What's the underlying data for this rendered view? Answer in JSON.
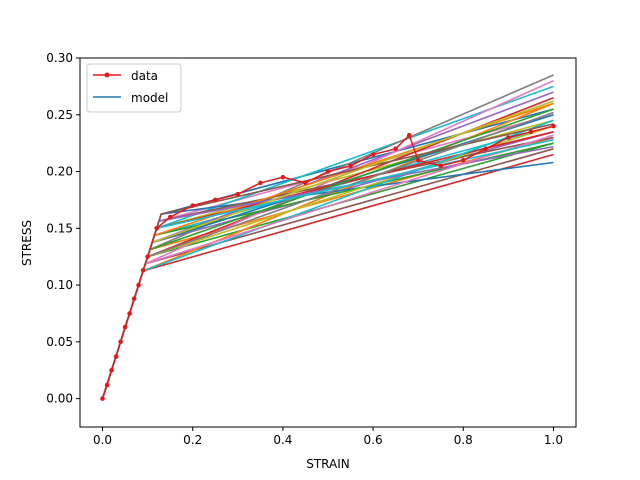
{
  "chart_data": {
    "type": "line",
    "title": "",
    "xlabel": "STRAIN",
    "ylabel": "STRESS",
    "xlim": [
      -0.05,
      1.05
    ],
    "ylim": [
      -0.025,
      0.3
    ],
    "xticks": [
      "0.0",
      "0.2",
      "0.4",
      "0.6",
      "0.8",
      "1.0"
    ],
    "yticks": [
      "0.00",
      "0.05",
      "0.10",
      "0.15",
      "0.20",
      "0.25",
      "0.30"
    ],
    "grid": false,
    "legend": {
      "position": "top-left",
      "entries": [
        {
          "label": "data",
          "color": "#e31a1c",
          "marker": "dot"
        },
        {
          "label": "model",
          "color": "#1f77b4",
          "marker": "none"
        }
      ]
    },
    "elastic_modulus": 1.25,
    "data_series": {
      "name": "data",
      "color": "#e31a1c",
      "x": [
        0.0,
        0.01,
        0.02,
        0.03,
        0.04,
        0.05,
        0.06,
        0.07,
        0.08,
        0.09,
        0.1,
        0.12,
        0.15,
        0.2,
        0.25,
        0.3,
        0.35,
        0.4,
        0.45,
        0.5,
        0.55,
        0.6,
        0.65,
        0.68,
        0.7,
        0.75,
        0.8,
        0.85,
        0.9,
        0.95,
        1.0
      ],
      "y": [
        0.0,
        0.012,
        0.025,
        0.037,
        0.05,
        0.063,
        0.075,
        0.088,
        0.1,
        0.113,
        0.125,
        0.15,
        0.16,
        0.17,
        0.175,
        0.18,
        0.19,
        0.195,
        0.19,
        0.2,
        0.205,
        0.215,
        0.22,
        0.232,
        0.21,
        0.205,
        0.21,
        0.22,
        0.23,
        0.235,
        0.24
      ]
    },
    "model_series": [
      {
        "yield_strain": 0.09,
        "end_stress": 0.215,
        "color": "#d62728"
      },
      {
        "yield_strain": 0.095,
        "end_stress": 0.22,
        "color": "#8c564b"
      },
      {
        "yield_strain": 0.1,
        "end_stress": 0.225,
        "color": "#2ca02c"
      },
      {
        "yield_strain": 0.105,
        "end_stress": 0.23,
        "color": "#ff7f0e"
      },
      {
        "yield_strain": 0.11,
        "end_stress": 0.235,
        "color": "#9467bd"
      },
      {
        "yield_strain": 0.115,
        "end_stress": 0.24,
        "color": "#17becf"
      },
      {
        "yield_strain": 0.12,
        "end_stress": 0.245,
        "color": "#bcbd22"
      },
      {
        "yield_strain": 0.125,
        "end_stress": 0.25,
        "color": "#e377c2"
      },
      {
        "yield_strain": 0.13,
        "end_stress": 0.255,
        "color": "#1f77b4"
      },
      {
        "yield_strain": 0.09,
        "end_stress": 0.26,
        "color": "#ff7f0e"
      },
      {
        "yield_strain": 0.1,
        "end_stress": 0.265,
        "color": "#d62728"
      },
      {
        "yield_strain": 0.11,
        "end_stress": 0.27,
        "color": "#9467bd"
      },
      {
        "yield_strain": 0.12,
        "end_stress": 0.275,
        "color": "#17becf"
      },
      {
        "yield_strain": 0.095,
        "end_stress": 0.28,
        "color": "#e377c2"
      },
      {
        "yield_strain": 0.105,
        "end_stress": 0.285,
        "color": "#7f7f7f"
      },
      {
        "yield_strain": 0.13,
        "end_stress": 0.208,
        "color": "#1f77b4"
      },
      {
        "yield_strain": 0.115,
        "end_stress": 0.225,
        "color": "#2ca02c"
      },
      {
        "yield_strain": 0.125,
        "end_stress": 0.23,
        "color": "#8c564b"
      },
      {
        "yield_strain": 0.1,
        "end_stress": 0.24,
        "color": "#bcbd22"
      },
      {
        "yield_strain": 0.11,
        "end_stress": 0.25,
        "color": "#1f77b4"
      },
      {
        "yield_strain": 0.12,
        "end_stress": 0.235,
        "color": "#d62728"
      },
      {
        "yield_strain": 0.09,
        "end_stress": 0.245,
        "color": "#17becf"
      },
      {
        "yield_strain": 0.105,
        "end_stress": 0.255,
        "color": "#2ca02c"
      },
      {
        "yield_strain": 0.115,
        "end_stress": 0.26,
        "color": "#ff7f0e"
      },
      {
        "yield_strain": 0.125,
        "end_stress": 0.222,
        "color": "#9467bd"
      },
      {
        "yield_strain": 0.095,
        "end_stress": 0.232,
        "color": "#e377c2"
      },
      {
        "yield_strain": 0.13,
        "end_stress": 0.242,
        "color": "#8c564b"
      },
      {
        "yield_strain": 0.1,
        "end_stress": 0.252,
        "color": "#7f7f7f"
      },
      {
        "yield_strain": 0.11,
        "end_stress": 0.262,
        "color": "#bcbd22"
      },
      {
        "yield_strain": 0.12,
        "end_stress": 0.228,
        "color": "#17becf"
      }
    ]
  }
}
